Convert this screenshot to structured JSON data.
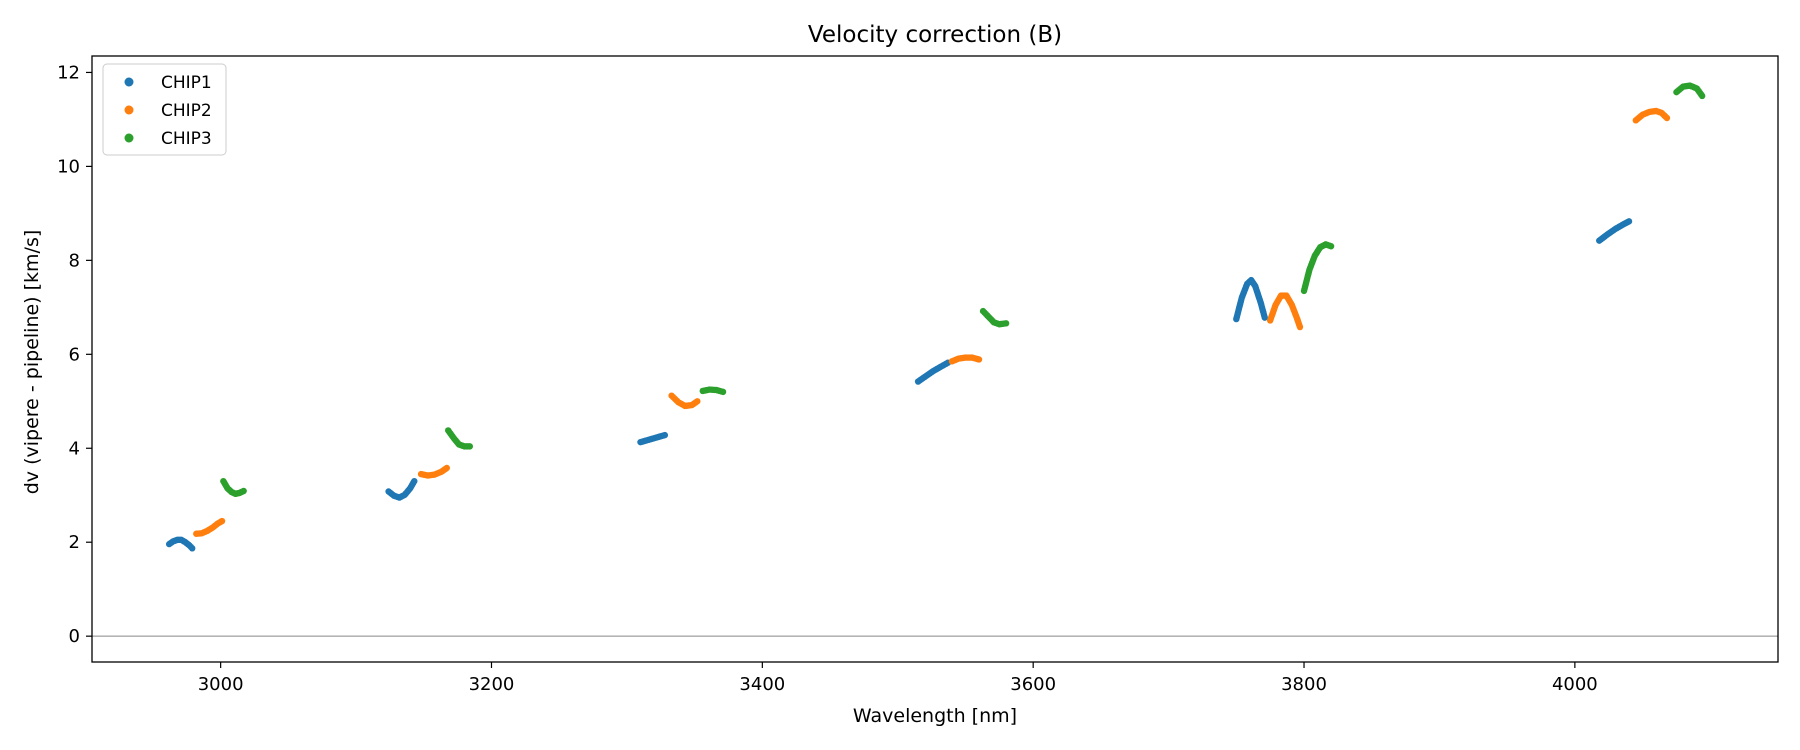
{
  "chart_data": {
    "type": "scatter",
    "title": "Velocity correction (B)",
    "xlabel": "Wavelength [nm]",
    "ylabel": "dv (vipere - pipeline) [km/s]",
    "xlim": [
      2905,
      4150
    ],
    "ylim": [
      -0.55,
      12.35
    ],
    "xticks": [
      3000,
      3200,
      3400,
      3600,
      3800,
      4000
    ],
    "yticks": [
      0,
      2,
      4,
      6,
      8,
      10,
      12
    ],
    "reference_line_y": 0,
    "grid": false,
    "legend_position": "upper left",
    "series": [
      {
        "name": "CHIP1",
        "color": "#1f77b4",
        "segments": [
          [
            [
              2962,
              1.96
            ],
            [
              2965,
              2.02
            ],
            [
              2968,
              2.05
            ],
            [
              2971,
              2.05
            ],
            [
              2974,
              2.0
            ],
            [
              2977,
              1.93
            ],
            [
              2979,
              1.87
            ]
          ],
          [
            [
              3124,
              3.08
            ],
            [
              3128,
              2.99
            ],
            [
              3132,
              2.95
            ],
            [
              3136,
              3.01
            ],
            [
              3140,
              3.15
            ],
            [
              3143,
              3.3
            ]
          ],
          [
            [
              3310,
              4.13
            ],
            [
              3316,
              4.18
            ],
            [
              3322,
              4.23
            ],
            [
              3328,
              4.28
            ]
          ],
          [
            [
              3515,
              5.42
            ],
            [
              3520,
              5.52
            ],
            [
              3526,
              5.64
            ],
            [
              3532,
              5.74
            ],
            [
              3537,
              5.82
            ]
          ],
          [
            [
              3750,
              6.75
            ],
            [
              3754,
              7.2
            ],
            [
              3758,
              7.5
            ],
            [
              3761,
              7.58
            ],
            [
              3764,
              7.45
            ],
            [
              3768,
              7.1
            ],
            [
              3771,
              6.78
            ]
          ],
          [
            [
              4018,
              8.42
            ],
            [
              4024,
              8.55
            ],
            [
              4030,
              8.67
            ],
            [
              4036,
              8.77
            ],
            [
              4040,
              8.83
            ]
          ]
        ]
      },
      {
        "name": "CHIP2",
        "color": "#ff7f0e",
        "segments": [
          [
            [
              2982,
              2.18
            ],
            [
              2986,
              2.19
            ],
            [
              2990,
              2.24
            ],
            [
              2994,
              2.31
            ],
            [
              2998,
              2.4
            ],
            [
              3001,
              2.45
            ]
          ],
          [
            [
              3148,
              3.45
            ],
            [
              3153,
              3.42
            ],
            [
              3158,
              3.44
            ],
            [
              3163,
              3.5
            ],
            [
              3167,
              3.58
            ]
          ],
          [
            [
              3333,
              5.12
            ],
            [
              3338,
              4.98
            ],
            [
              3343,
              4.9
            ],
            [
              3348,
              4.92
            ],
            [
              3352,
              5.0
            ]
          ],
          [
            [
              3540,
              5.85
            ],
            [
              3545,
              5.91
            ],
            [
              3550,
              5.93
            ],
            [
              3555,
              5.93
            ],
            [
              3560,
              5.89
            ]
          ],
          [
            [
              3775,
              6.72
            ],
            [
              3779,
              7.05
            ],
            [
              3783,
              7.25
            ],
            [
              3787,
              7.25
            ],
            [
              3791,
              7.05
            ],
            [
              3795,
              6.75
            ],
            [
              3797,
              6.58
            ]
          ],
          [
            [
              4045,
              10.98
            ],
            [
              4050,
              11.1
            ],
            [
              4055,
              11.16
            ],
            [
              4060,
              11.18
            ],
            [
              4064,
              11.14
            ],
            [
              4068,
              11.03
            ]
          ]
        ]
      },
      {
        "name": "CHIP3",
        "color": "#2ca02c",
        "segments": [
          [
            [
              3002,
              3.3
            ],
            [
              3005,
              3.15
            ],
            [
              3008,
              3.07
            ],
            [
              3011,
              3.03
            ],
            [
              3014,
              3.05
            ],
            [
              3017,
              3.09
            ]
          ],
          [
            [
              3168,
              4.38
            ],
            [
              3172,
              4.22
            ],
            [
              3176,
              4.08
            ],
            [
              3180,
              4.04
            ],
            [
              3184,
              4.04
            ]
          ],
          [
            [
              3356,
              5.22
            ],
            [
              3361,
              5.25
            ],
            [
              3366,
              5.24
            ],
            [
              3371,
              5.2
            ]
          ],
          [
            [
              3563,
              6.92
            ],
            [
              3567,
              6.8
            ],
            [
              3571,
              6.68
            ],
            [
              3575,
              6.64
            ],
            [
              3580,
              6.66
            ]
          ],
          [
            [
              3800,
              7.35
            ],
            [
              3804,
              7.8
            ],
            [
              3808,
              8.1
            ],
            [
              3812,
              8.28
            ],
            [
              3816,
              8.34
            ],
            [
              3820,
              8.3
            ]
          ],
          [
            [
              4075,
              11.58
            ],
            [
              4080,
              11.7
            ],
            [
              4085,
              11.72
            ],
            [
              4090,
              11.66
            ],
            [
              4094,
              11.5
            ]
          ]
        ]
      }
    ]
  },
  "colors": {
    "chip1": "#1f77b4",
    "chip2": "#ff7f0e",
    "chip3": "#2ca02c",
    "zero_line": "#888888"
  }
}
